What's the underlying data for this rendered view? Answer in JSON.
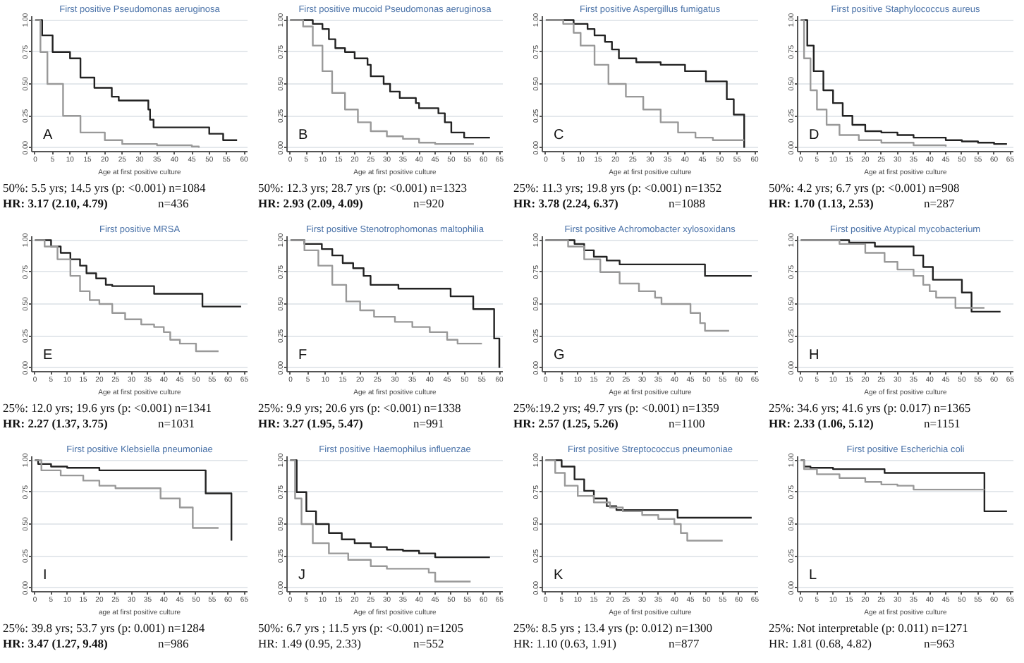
{
  "chart_data": [
    {
      "type": "step",
      "title": "First positive Pseudomonas aeruginosa",
      "xlabel": "Age at first positive culture",
      "xlim": [
        -1,
        61
      ],
      "xticks": [
        0,
        5,
        10,
        15,
        20,
        25,
        30,
        35,
        40,
        45,
        50,
        55,
        60
      ],
      "ylim": [
        -0.03,
        1.03
      ],
      "yticks": [
        {
          "value": 0,
          "label": "0.00"
        },
        {
          "value": 0.25,
          "label": "0.25"
        },
        {
          "value": 0.5,
          "label": "0.50"
        },
        {
          "value": 0.75,
          "label": "0.75"
        },
        {
          "value": 1,
          "label": "1.00"
        }
      ],
      "grid": "y",
      "series": [
        {
          "color": "#222222",
          "x": [
            0,
            2,
            5,
            10,
            13,
            17,
            22,
            24,
            32.5,
            33,
            34,
            36,
            50,
            54,
            58
          ],
          "values": [
            1,
            0.88,
            0.75,
            0.7,
            0.55,
            0.47,
            0.4,
            0.37,
            0.3,
            0.22,
            0.16,
            0.16,
            0.11,
            0.06,
            0.06
          ]
        },
        {
          "color": "#999999",
          "x": [
            0,
            1.5,
            3.5,
            8,
            13,
            20,
            25,
            35,
            45,
            47
          ],
          "values": [
            1,
            0.75,
            0.5,
            0.25,
            0.12,
            0.06,
            0.03,
            0.02,
            0.01,
            0
          ]
        }
      ],
      "annotations": [
        "A",
        "50%: 5.5 yrs; 14.5 yrs (p: <0.001) n=1084",
        "HR: 3.17 (2.10, 4.79)",
        "n=436"
      ]
    },
    {
      "type": "step",
      "title": "First positive mucoid Pseudomonas aeruginosa",
      "xlabel": "Age at first positive culture",
      "xlim": [
        -1,
        66
      ],
      "xticks": [
        0,
        5,
        10,
        15,
        20,
        25,
        30,
        35,
        40,
        45,
        50,
        55,
        60,
        65
      ],
      "ylim": [
        -0.03,
        1.03
      ],
      "yticks": [
        {
          "value": 0,
          "label": "0.00"
        },
        {
          "value": 0.25,
          "label": "0.25"
        },
        {
          "value": 0.5,
          "label": "0.50"
        },
        {
          "value": 0.75,
          "label": "0.75"
        },
        {
          "value": 1,
          "label": "1.00"
        }
      ],
      "grid": "y",
      "series": [
        {
          "color": "#222222",
          "x": [
            0,
            4,
            7,
            10,
            12,
            14,
            17,
            20,
            24,
            25,
            29,
            31,
            34,
            39,
            40,
            46,
            48,
            50,
            54,
            62
          ],
          "values": [
            1,
            1,
            0.97,
            0.93,
            0.85,
            0.78,
            0.75,
            0.7,
            0.65,
            0.56,
            0.5,
            0.44,
            0.39,
            0.35,
            0.31,
            0.27,
            0.2,
            0.12,
            0.08,
            0.08
          ]
        },
        {
          "color": "#999999",
          "x": [
            0,
            4,
            7,
            10,
            13,
            17,
            21,
            25,
            30,
            35,
            40,
            45,
            57
          ],
          "values": [
            1,
            0.95,
            0.8,
            0.6,
            0.43,
            0.3,
            0.2,
            0.13,
            0.09,
            0.07,
            0.04,
            0.03,
            0.03
          ]
        }
      ],
      "annotations": [
        "B",
        "50%: 12.3 yrs; 28.7 yrs (p: <0.001) n=1323",
        "HR: 2.93 (2.09, 4.09)",
        "n=920"
      ]
    },
    {
      "type": "step",
      "title": "First positive Aspergillus fumigatus",
      "xlabel": "Age at first positive culture",
      "xlim": [
        -1,
        61
      ],
      "xticks": [
        0,
        5,
        10,
        15,
        20,
        25,
        30,
        35,
        40,
        45,
        50,
        55,
        60
      ],
      "ylim": [
        -0.03,
        1.03
      ],
      "yticks": [
        {
          "value": 0,
          "label": "0.00"
        },
        {
          "value": 0.25,
          "label": "0.25"
        },
        {
          "value": 0.5,
          "label": "0.50"
        },
        {
          "value": 0.75,
          "label": "0.75"
        },
        {
          "value": 1,
          "label": "1.00"
        }
      ],
      "grid": "y",
      "series": [
        {
          "color": "#222222",
          "x": [
            0,
            5,
            8,
            12,
            14,
            17,
            19,
            21,
            26,
            33,
            40,
            46,
            52,
            54,
            57
          ],
          "values": [
            1,
            1,
            0.97,
            0.93,
            0.88,
            0.83,
            0.77,
            0.7,
            0.67,
            0.65,
            0.6,
            0.52,
            0.38,
            0.26,
            0
          ]
        },
        {
          "color": "#999999",
          "x": [
            0,
            5,
            8,
            10,
            14,
            18,
            23,
            28,
            33,
            38,
            43,
            48,
            57
          ],
          "values": [
            1,
            0.97,
            0.9,
            0.8,
            0.65,
            0.5,
            0.4,
            0.3,
            0.2,
            0.12,
            0.08,
            0.06,
            0.06
          ]
        }
      ],
      "annotations": [
        "C",
        "25%: 11.3 yrs; 19.8 yrs (p: <0.001) n=1352",
        "HR: 3.78 (2.24, 6.37)",
        "n=1088"
      ]
    },
    {
      "type": "step",
      "title": "First positive Staphylococcus aureus",
      "xlabel": "Age at first positive culture",
      "xlim": [
        -1,
        66
      ],
      "xticks": [
        0,
        5,
        10,
        15,
        20,
        25,
        30,
        35,
        40,
        45,
        50,
        55,
        60,
        65
      ],
      "ylim": [
        -0.03,
        1.03
      ],
      "yticks": [
        {
          "value": 0,
          "label": "0.00"
        },
        {
          "value": 0.25,
          "label": "0.25"
        },
        {
          "value": 0.5,
          "label": "0.50"
        },
        {
          "value": 0.75,
          "label": "0.75"
        },
        {
          "value": 1,
          "label": "1.00"
        }
      ],
      "grid": "y",
      "series": [
        {
          "color": "#222222",
          "x": [
            0,
            2,
            4,
            7,
            10,
            13,
            16,
            20,
            25,
            30,
            35,
            40,
            45,
            50,
            55,
            60,
            64
          ],
          "values": [
            1,
            0.8,
            0.6,
            0.45,
            0.35,
            0.25,
            0.18,
            0.13,
            0.12,
            0.1,
            0.08,
            0.08,
            0.06,
            0.05,
            0.04,
            0.03,
            0.03
          ]
        },
        {
          "color": "#999999",
          "x": [
            0,
            1,
            3,
            5,
            8,
            12,
            18,
            25,
            35,
            45
          ],
          "values": [
            1,
            0.7,
            0.45,
            0.3,
            0.18,
            0.1,
            0.06,
            0.04,
            0.02,
            0.01
          ]
        }
      ],
      "annotations": [
        "D",
        "50%: 4.2 yrs; 6.7 yrs (p: <0.001) n=908",
        "HR: 1.70 (1.13, 2.53)",
        "n=287"
      ]
    },
    {
      "type": "step",
      "title": "First positive MRSA",
      "xlabel": "Age at first positive culture",
      "xlim": [
        -1,
        66
      ],
      "xticks": [
        0,
        5,
        10,
        15,
        20,
        25,
        30,
        35,
        40,
        45,
        50,
        55,
        60,
        65
      ],
      "ylim": [
        -0.03,
        1.03
      ],
      "yticks": [
        {
          "value": 0,
          "label": "0.00"
        },
        {
          "value": 0.25,
          "label": "0.25"
        },
        {
          "value": 0.5,
          "label": "0.50"
        },
        {
          "value": 0.75,
          "label": "0.75"
        },
        {
          "value": 1,
          "label": "1.00"
        }
      ],
      "grid": "y",
      "series": [
        {
          "color": "#222222",
          "x": [
            0,
            3,
            5,
            8,
            11,
            14,
            16,
            19,
            22,
            24,
            37,
            52,
            64
          ],
          "values": [
            1,
            1,
            0.95,
            0.9,
            0.85,
            0.8,
            0.74,
            0.7,
            0.65,
            0.64,
            0.58,
            0.48,
            0.48
          ]
        },
        {
          "color": "#999999",
          "x": [
            0,
            3,
            7,
            11,
            14,
            17,
            20,
            24,
            28,
            33,
            37,
            40,
            42,
            45,
            50,
            57
          ],
          "values": [
            1,
            0.95,
            0.85,
            0.72,
            0.6,
            0.53,
            0.5,
            0.43,
            0.38,
            0.34,
            0.32,
            0.28,
            0.22,
            0.19,
            0.13,
            0.13
          ]
        }
      ],
      "annotations": [
        "E",
        "25%: 12.0 yrs; 19.6 yrs (p: <0.001) n=1341",
        "HR: 2.27 (1.37, 3.75)",
        "n=1031"
      ]
    },
    {
      "type": "step",
      "title": "First positive Stenotrophomonas maltophilia",
      "xlabel": "Age at first positive culture",
      "xlim": [
        -1,
        61
      ],
      "xticks": [
        0,
        5,
        10,
        15,
        20,
        25,
        30,
        35,
        40,
        45,
        50,
        55,
        60
      ],
      "ylim": [
        -0.03,
        1.03
      ],
      "yticks": [
        {
          "value": 0,
          "label": "0.00"
        },
        {
          "value": 0.25,
          "label": "0.25"
        },
        {
          "value": 0.5,
          "label": "0.50"
        },
        {
          "value": 0.75,
          "label": "0.75"
        },
        {
          "value": 1,
          "label": "1.00"
        }
      ],
      "grid": "y",
      "series": [
        {
          "color": "#222222",
          "x": [
            0,
            4,
            9,
            12,
            15,
            18,
            21,
            23,
            31,
            46,
            52.5,
            58.5,
            60
          ],
          "values": [
            1,
            0.97,
            0.93,
            0.88,
            0.82,
            0.78,
            0.72,
            0.65,
            0.62,
            0.56,
            0.46,
            0.23,
            0
          ]
        },
        {
          "color": "#999999",
          "x": [
            0,
            4,
            8,
            12,
            16,
            20,
            24,
            30,
            35,
            40,
            45,
            48,
            55
          ],
          "values": [
            1,
            0.92,
            0.8,
            0.65,
            0.52,
            0.45,
            0.4,
            0.36,
            0.32,
            0.28,
            0.22,
            0.19,
            0.19
          ]
        }
      ],
      "annotations": [
        "F",
        "25%: 9.9 yrs; 20.6 yrs (p: <0.001) n=1338",
        "HR: 3.27 (1.95, 5.47)",
        "n=991"
      ]
    },
    {
      "type": "step",
      "title": "First positive Achromobacter xylosoxidans",
      "xlabel": "Age at first positive culture",
      "xlim": [
        -1,
        66
      ],
      "xticks": [
        0,
        5,
        10,
        15,
        20,
        25,
        30,
        35,
        40,
        45,
        50,
        55,
        60,
        65
      ],
      "ylim": [
        -0.03,
        1.03
      ],
      "yticks": [
        {
          "value": 0,
          "label": "0.00"
        },
        {
          "value": 0.25,
          "label": "0.25"
        },
        {
          "value": 0.5,
          "label": "0.50"
        },
        {
          "value": 0.75,
          "label": "0.75"
        },
        {
          "value": 1,
          "label": "1.00"
        }
      ],
      "grid": "y",
      "series": [
        {
          "color": "#222222",
          "x": [
            0,
            9,
            12,
            15,
            19,
            23,
            49.5,
            64
          ],
          "values": [
            1,
            0.97,
            0.92,
            0.87,
            0.84,
            0.81,
            0.72,
            0.72
          ]
        },
        {
          "color": "#999999",
          "x": [
            0,
            7,
            12,
            17,
            23,
            29,
            34,
            36,
            45,
            48,
            49.5,
            57
          ],
          "values": [
            1,
            0.95,
            0.85,
            0.75,
            0.66,
            0.6,
            0.55,
            0.5,
            0.43,
            0.35,
            0.29,
            0.29
          ]
        }
      ],
      "annotations": [
        "G",
        "25%:19.2 yrs; 49.7 yrs (p: <0.001) n=1359",
        "HR: 2.57 (1.25, 5.26)",
        "n=1100"
      ]
    },
    {
      "type": "step",
      "title": "First positive Atypical mycobacterium",
      "xlabel": "Age of first positive culture",
      "xlim": [
        -1,
        66
      ],
      "xticks": [
        0,
        5,
        10,
        15,
        20,
        25,
        30,
        35,
        40,
        45,
        50,
        55,
        60,
        65
      ],
      "ylim": [
        -0.03,
        1.03
      ],
      "yticks": [
        {
          "value": 0,
          "label": "0.00"
        },
        {
          "value": 0.25,
          "label": "0.25"
        },
        {
          "value": 0.5,
          "label": "0.50"
        },
        {
          "value": 0.75,
          "label": "0.75"
        },
        {
          "value": 1,
          "label": "1.00"
        }
      ],
      "grid": "y",
      "series": [
        {
          "color": "#222222",
          "x": [
            0,
            15,
            23,
            35,
            38,
            41,
            50,
            53,
            62
          ],
          "values": [
            1,
            0.98,
            0.95,
            0.88,
            0.79,
            0.69,
            0.59,
            0.44,
            0.44
          ]
        },
        {
          "color": "#999999",
          "x": [
            0,
            12,
            20,
            26,
            30,
            35,
            38,
            40,
            42,
            48,
            57
          ],
          "values": [
            1,
            0.97,
            0.9,
            0.83,
            0.77,
            0.72,
            0.65,
            0.6,
            0.55,
            0.47,
            0.47
          ]
        }
      ],
      "annotations": [
        "H",
        "25%: 34.6 yrs; 41.6 yrs (p: 0.017) n=1365",
        "HR: 2.33 (1.06, 5.12)",
        "n=1151"
      ]
    },
    {
      "type": "step",
      "title": "First positive Klebsiella pneumoniae",
      "xlabel": "age at first positive culture",
      "xlim": [
        -1,
        66
      ],
      "xticks": [
        0,
        5,
        10,
        15,
        20,
        25,
        30,
        35,
        40,
        45,
        50,
        55,
        60,
        65
      ],
      "ylim": [
        -0.03,
        1.03
      ],
      "yticks": [
        {
          "value": 0,
          "label": "0.00"
        },
        {
          "value": 0.25,
          "label": "0.25"
        },
        {
          "value": 0.5,
          "label": "0.50"
        },
        {
          "value": 0.75,
          "label": "0.75"
        },
        {
          "value": 1,
          "label": "1.00"
        }
      ],
      "grid": "y",
      "series": [
        {
          "color": "#222222",
          "x": [
            0,
            1,
            5,
            10,
            20,
            53,
            61
          ],
          "values": [
            1,
            0.97,
            0.95,
            0.94,
            0.92,
            0.74,
            0.37
          ]
        },
        {
          "color": "#999999",
          "x": [
            0,
            2,
            8,
            15,
            20,
            25,
            39,
            45,
            49,
            57
          ],
          "values": [
            1,
            0.92,
            0.88,
            0.84,
            0.8,
            0.78,
            0.7,
            0.63,
            0.47,
            0.47
          ]
        }
      ],
      "annotations": [
        "I",
        "25%: 39.8 yrs; 53.7 yrs (p: 0.001) n=1284",
        "HR: 3.47 (1.27, 9.48)",
        "n=986"
      ]
    },
    {
      "type": "step",
      "title": "First positive Haemophilus influenzae",
      "xlabel": "Age of first positive culture",
      "xlim": [
        -1,
        66
      ],
      "xticks": [
        0,
        5,
        10,
        15,
        20,
        25,
        30,
        35,
        40,
        45,
        50,
        55,
        60,
        65
      ],
      "ylim": [
        -0.03,
        1.03
      ],
      "yticks": [
        {
          "value": 0,
          "label": "0.00"
        },
        {
          "value": 0.25,
          "label": "0.25"
        },
        {
          "value": 0.5,
          "label": "0.50"
        },
        {
          "value": 0.75,
          "label": "0.75"
        },
        {
          "value": 1,
          "label": "1.00"
        }
      ],
      "grid": "y",
      "series": [
        {
          "color": "#222222",
          "x": [
            0,
            2,
            5,
            8,
            12,
            16,
            20,
            25,
            30,
            35,
            40,
            45,
            62
          ],
          "values": [
            1,
            0.75,
            0.6,
            0.5,
            0.43,
            0.38,
            0.35,
            0.32,
            0.3,
            0.29,
            0.27,
            0.24,
            0.24
          ]
        },
        {
          "color": "#999999",
          "x": [
            0,
            1.5,
            3.5,
            7,
            12,
            18,
            25,
            30,
            40,
            43,
            45,
            56
          ],
          "values": [
            1,
            0.7,
            0.5,
            0.35,
            0.27,
            0.22,
            0.17,
            0.15,
            0.15,
            0.12,
            0.05,
            0.05
          ]
        }
      ],
      "annotations": [
        "J",
        "50%: 6.7 yrs ; 11.5 yrs (p: <0.001) n=1205",
        "HR: 1.49 (0.95, 2.33)",
        "n=552"
      ]
    },
    {
      "type": "step",
      "title": "First positive Streptococcus pneumoniae",
      "xlabel": "Age of first positive culture",
      "xlim": [
        -1,
        66
      ],
      "xticks": [
        0,
        5,
        10,
        15,
        20,
        25,
        30,
        35,
        40,
        45,
        50,
        55,
        60,
        65
      ],
      "ylim": [
        -0.03,
        1.03
      ],
      "yticks": [
        {
          "value": 0,
          "label": "0.00"
        },
        {
          "value": 0.25,
          "label": "0.25"
        },
        {
          "value": 0.5,
          "label": "0.50"
        },
        {
          "value": 0.75,
          "label": "0.75"
        },
        {
          "value": 1,
          "label": "1.00"
        }
      ],
      "grid": "y",
      "series": [
        {
          "color": "#222222",
          "x": [
            0,
            2,
            5,
            9,
            12,
            15,
            19,
            22,
            41,
            64
          ],
          "values": [
            1,
            1,
            0.95,
            0.85,
            0.76,
            0.7,
            0.64,
            0.61,
            0.55,
            0.55
          ]
        },
        {
          "color": "#999999",
          "x": [
            0,
            3,
            6,
            10,
            15,
            20,
            24,
            30,
            35,
            40,
            42,
            44,
            55
          ],
          "values": [
            1,
            0.9,
            0.8,
            0.72,
            0.67,
            0.63,
            0.6,
            0.57,
            0.54,
            0.5,
            0.43,
            0.37,
            0.37
          ]
        }
      ],
      "annotations": [
        "K",
        "25%: 8.5 yrs ; 13.4 yrs (p: 0.012) n=1300",
        "HR: 1.10 (0.63, 1.91)",
        "n=877"
      ]
    },
    {
      "type": "step",
      "title": "First positive Escherichia coli",
      "xlabel": "Age at first positive culture",
      "xlim": [
        -1,
        66
      ],
      "xticks": [
        0,
        5,
        10,
        15,
        20,
        25,
        30,
        35,
        40,
        45,
        50,
        55,
        60,
        65
      ],
      "ylim": [
        -0.03,
        1.03
      ],
      "yticks": [
        {
          "value": 0,
          "label": "0.00"
        },
        {
          "value": 0.25,
          "label": "0.25"
        },
        {
          "value": 0.5,
          "label": "0.50"
        },
        {
          "value": 0.75,
          "label": "0.75"
        },
        {
          "value": 1,
          "label": "1.00"
        }
      ],
      "grid": "y",
      "series": [
        {
          "color": "#222222",
          "x": [
            0,
            1,
            3,
            10,
            26,
            57,
            64
          ],
          "values": [
            1,
            0.95,
            0.94,
            0.93,
            0.9,
            0.6,
            0.6
          ]
        },
        {
          "color": "#999999",
          "x": [
            0,
            1,
            5,
            12,
            20,
            25,
            30,
            35,
            57
          ],
          "values": [
            1,
            0.93,
            0.89,
            0.86,
            0.83,
            0.81,
            0.8,
            0.77,
            0.77
          ]
        }
      ],
      "annotations": [
        "L",
        "25%: Not interpretable (p: 0.011) n=1271",
        "HR: 1.81 (0.68, 4.82)",
        "n=963"
      ]
    }
  ]
}
